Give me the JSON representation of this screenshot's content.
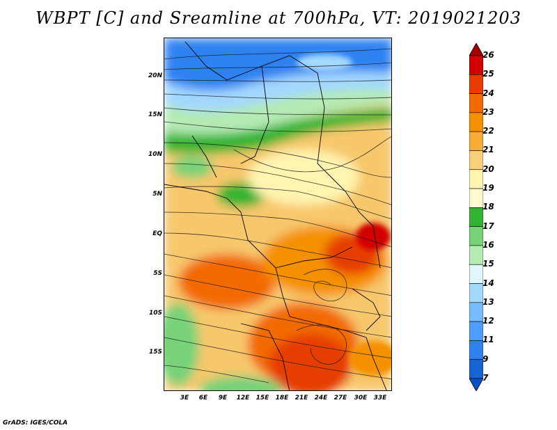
{
  "title": "WBPT [C] and Sreamline at 700hPa, VT: 2019021203",
  "map": {
    "lat_labels": [
      "20N",
      "15N",
      "10N",
      "5N",
      "EQ",
      "5S",
      "10S",
      "15S"
    ],
    "lon_labels": [
      "3E",
      "6E",
      "9E",
      "12E",
      "15E",
      "18E",
      "21E",
      "24E",
      "27E",
      "30E",
      "33E"
    ]
  },
  "colorbar": {
    "levels": [
      "26",
      "25",
      "24",
      "23",
      "22",
      "21",
      "20",
      "19",
      "18",
      "17",
      "16",
      "15",
      "14",
      "13",
      "12",
      "11",
      "9",
      "7"
    ],
    "colors": [
      "#a50000",
      "#d20000",
      "#e63c00",
      "#f26a00",
      "#f59100",
      "#f9ad37",
      "#fbd07a",
      "#fff4b0",
      "#fffbd0",
      "#32b432",
      "#78d278",
      "#b4eab4",
      "#e3f6fb",
      "#a3d8ff",
      "#78bbff",
      "#4d9dff",
      "#2f82f0",
      "#1464d2",
      "#0a50c8"
    ]
  },
  "footer": "GrADS: IGES/COLA"
}
